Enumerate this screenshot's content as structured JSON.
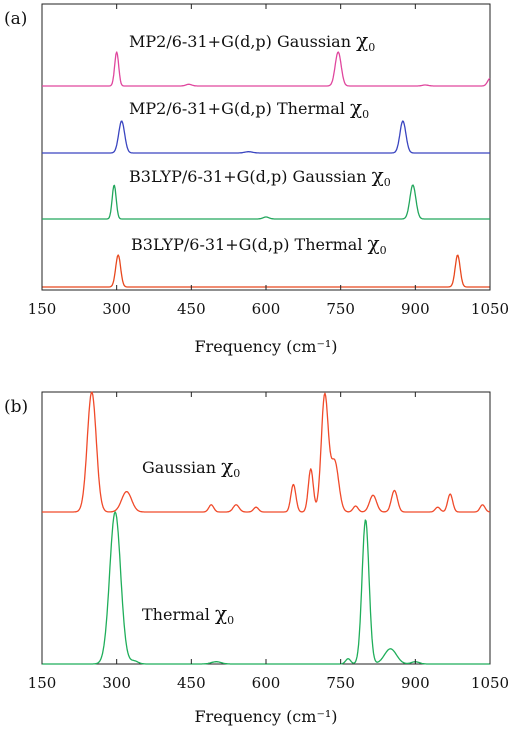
{
  "chart_data": [
    {
      "panel": "(a)",
      "type": "line",
      "xlabel": "Frequency (cm⁻¹)",
      "xlim": [
        150,
        1050
      ],
      "xticks": [
        "150",
        "300",
        "450",
        "600",
        "750",
        "900",
        "1050"
      ],
      "series": [
        {
          "name": "MP2/6-31+G(d,p)  Gaussian χ0",
          "label_main": "MP2/6-31+G(d,p)  Gaussian ",
          "color": "#e0479e",
          "peaks": [
            {
              "x": 300,
              "h": 1.0,
              "w": 4
            },
            {
              "x": 445,
              "h": 0.05,
              "w": 6
            },
            {
              "x": 745,
              "h": 1.0,
              "w": 6
            },
            {
              "x": 920,
              "h": 0.03,
              "w": 6
            },
            {
              "x": 1050,
              "h": 0.22,
              "w": 5
            }
          ]
        },
        {
          "name": "MP2/6-31+G(d,p) Thermal χ0",
          "label_main": "MP2/6-31+G(d,p) Thermal ",
          "color": "#3a45c0",
          "peaks": [
            {
              "x": 310,
              "h": 1.0,
              "w": 6
            },
            {
              "x": 565,
              "h": 0.04,
              "w": 8
            },
            {
              "x": 875,
              "h": 1.0,
              "w": 6
            }
          ]
        },
        {
          "name": "B3LYP/6-31+G(d,p) Gaussian χ0",
          "label_main": "B3LYP/6-31+G(d,p) Gaussian ",
          "color": "#22a65c",
          "peaks": [
            {
              "x": 295,
              "h": 1.0,
              "w": 4
            },
            {
              "x": 600,
              "h": 0.06,
              "w": 6
            },
            {
              "x": 895,
              "h": 1.0,
              "w": 6
            }
          ]
        },
        {
          "name": "B3LYP/6-31+G(d,p) Thermal χ0",
          "label_main": "B3LYP/6-31+G(d,p) Thermal ",
          "color": "#e8481e",
          "peaks": [
            {
              "x": 303,
              "h": 1.0,
              "w": 5
            },
            {
              "x": 985,
              "h": 1.0,
              "w": 5
            }
          ]
        }
      ]
    },
    {
      "panel": "(b)",
      "type": "line",
      "xlabel": "Frequency (cm⁻¹)",
      "xlim": [
        150,
        1050
      ],
      "xticks": [
        "150",
        "300",
        "450",
        "600",
        "750",
        "900",
        "1050"
      ],
      "series": [
        {
          "name": "Gaussian χ0",
          "label_main": "Gaussian ",
          "color": "#f04a2a",
          "peaks": [
            {
              "x": 250,
              "h": 1.0,
              "w": 9
            },
            {
              "x": 320,
              "h": 0.17,
              "w": 10
            },
            {
              "x": 490,
              "h": 0.06,
              "w": 5
            },
            {
              "x": 540,
              "h": 0.06,
              "w": 6
            },
            {
              "x": 580,
              "h": 0.04,
              "w": 5
            },
            {
              "x": 655,
              "h": 0.23,
              "w": 5
            },
            {
              "x": 690,
              "h": 0.36,
              "w": 5
            },
            {
              "x": 718,
              "h": 0.97,
              "w": 7
            },
            {
              "x": 738,
              "h": 0.42,
              "w": 8
            },
            {
              "x": 780,
              "h": 0.05,
              "w": 5
            },
            {
              "x": 815,
              "h": 0.14,
              "w": 7
            },
            {
              "x": 858,
              "h": 0.18,
              "w": 6
            },
            {
              "x": 945,
              "h": 0.04,
              "w": 5
            },
            {
              "x": 970,
              "h": 0.15,
              "w": 5
            },
            {
              "x": 1035,
              "h": 0.06,
              "w": 5
            }
          ]
        },
        {
          "name": "Thermal χ0",
          "label_main": "Thermal ",
          "color": "#1fae5a",
          "peaks": [
            {
              "x": 297,
              "h": 1.0,
              "w": 11
            },
            {
              "x": 335,
              "h": 0.02,
              "w": 8
            },
            {
              "x": 500,
              "h": 0.015,
              "w": 10
            },
            {
              "x": 765,
              "h": 0.035,
              "w": 5
            },
            {
              "x": 800,
              "h": 0.95,
              "w": 7
            },
            {
              "x": 850,
              "h": 0.1,
              "w": 12
            },
            {
              "x": 900,
              "h": 0.015,
              "w": 8
            }
          ]
        }
      ]
    }
  ]
}
